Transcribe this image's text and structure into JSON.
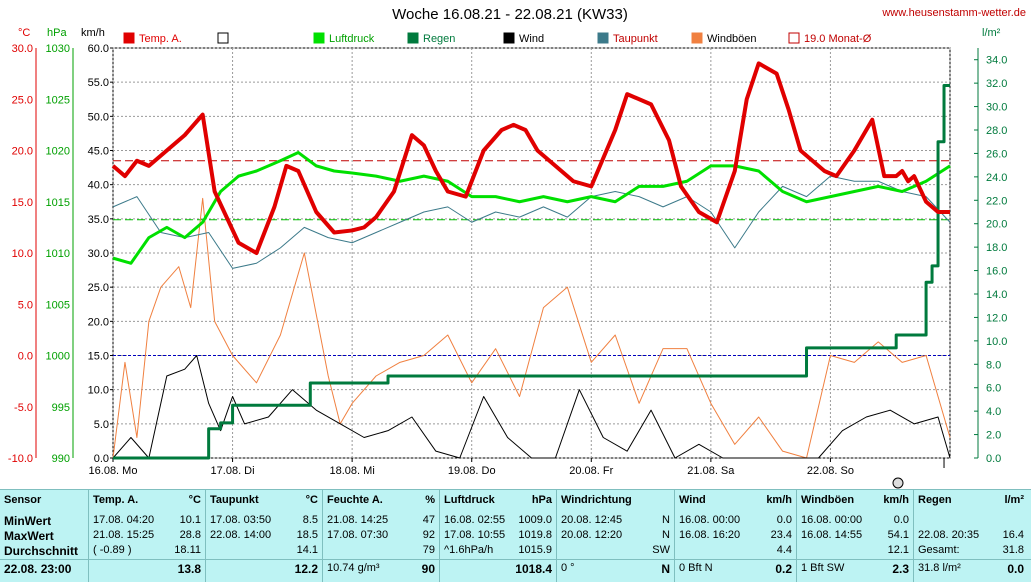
{
  "header": {
    "title": "Woche 16.08.21 - 22.08.21 (KW33)",
    "site": "www.heusenstamm-wetter.de"
  },
  "axes": {
    "temp_unit": "°C",
    "press_unit": "hPa",
    "wind_unit": "km/h",
    "rain_unit": "l/m²",
    "temp_ticks": [
      "30.0",
      "25.0",
      "20.0",
      "15.0",
      "10.0",
      "5.0",
      "0.0",
      "-5.0",
      "-10.0"
    ],
    "press_ticks": [
      "1030",
      "1025",
      "1020",
      "1015",
      "1010",
      "1005",
      "1000",
      "995",
      "990"
    ],
    "wind_ticks": [
      "60.0",
      "55.0",
      "50.0",
      "45.0",
      "40.0",
      "35.0",
      "30.0",
      "25.0",
      "20.0",
      "15.0",
      "10.0",
      "5.0",
      "0.0"
    ],
    "rain_ticks": [
      "34.0",
      "32.0",
      "30.0",
      "28.0",
      "26.0",
      "24.0",
      "22.0",
      "20.0",
      "18.0",
      "16.0",
      "14.0",
      "12.0",
      "10.0",
      "8.0",
      "6.0",
      "4.0",
      "2.0",
      "0.0"
    ],
    "day_labels": [
      "16.08. Mo",
      "17.08. Di",
      "18.08. Mi",
      "19.08. Do",
      "20.08. Fr",
      "21.08. Sa",
      "22.08. So"
    ]
  },
  "legend": {
    "temp": "Temp. A.",
    "press": "Luftdruck",
    "rain": "Regen",
    "wind": "Wind",
    "dew": "Taupunkt",
    "gust": "Windböen",
    "month": "19.0 Monat-Ø"
  },
  "colors": {
    "temp": "#e00000",
    "press": "#00e000",
    "rain": "#007a3d",
    "wind": "#000000",
    "dew": "#3c7a8a",
    "gust": "#f08040",
    "left_temp_axis": "#e00000",
    "left_press_axis": "#00a000",
    "right_rain_axis": "#007a3d"
  },
  "chart_data": {
    "type": "line",
    "title": "Woche 16.08.21 - 22.08.21 (KW33)",
    "xlabel": "",
    "ylabel": "°C / hPa / km/h / l/m²",
    "x_range_days": [
      0,
      7
    ],
    "temp_range": [
      -10,
      30
    ],
    "press_range": [
      990,
      1030
    ],
    "wind_range": [
      0,
      60
    ],
    "rain_range": [
      0,
      35
    ],
    "month_avg_temp": 19.0,
    "series": [
      {
        "name": "Temp. A.",
        "unit": "°C",
        "x": [
          0,
          0.1,
          0.2,
          0.3,
          0.45,
          0.6,
          0.75,
          0.85,
          0.95,
          1.05,
          1.2,
          1.35,
          1.45,
          1.55,
          1.7,
          1.85,
          2.0,
          2.1,
          2.2,
          2.35,
          2.5,
          2.6,
          2.7,
          2.8,
          2.95,
          3.1,
          3.25,
          3.35,
          3.45,
          3.55,
          3.7,
          3.85,
          4.0,
          4.2,
          4.3,
          4.5,
          4.65,
          4.75,
          4.9,
          5.05,
          5.2,
          5.3,
          5.4,
          5.55,
          5.65,
          5.75,
          5.85,
          5.95,
          6.05,
          6.2,
          6.35,
          6.45,
          6.55,
          6.6,
          6.65,
          6.7,
          6.8,
          6.9,
          7.0
        ],
        "values": [
          18.5,
          17.5,
          19.0,
          18.5,
          20.0,
          21.5,
          23.5,
          16.0,
          13.5,
          11.0,
          10.0,
          14.5,
          18.5,
          18.0,
          14.0,
          12.0,
          12.2,
          12.5,
          13.5,
          16.0,
          21.5,
          20.5,
          18.0,
          16.0,
          15.5,
          20.0,
          22.0,
          22.5,
          22.0,
          20.0,
          18.5,
          17.0,
          16.5,
          22.0,
          25.5,
          24.5,
          21.0,
          16.5,
          14.0,
          13.0,
          18.0,
          25.0,
          28.5,
          27.5,
          24.0,
          20.0,
          19.0,
          18.0,
          17.5,
          20.0,
          23.0,
          17.5,
          17.5,
          18.0,
          17.0,
          17.5,
          15.0,
          14.0,
          14.0
        ]
      },
      {
        "name": "Taupunkt",
        "unit": "°C",
        "x": [
          0,
          0.2,
          0.4,
          0.6,
          0.8,
          1.0,
          1.2,
          1.4,
          1.6,
          1.8,
          2.0,
          2.2,
          2.4,
          2.6,
          2.8,
          3.0,
          3.2,
          3.4,
          3.6,
          3.8,
          4.0,
          4.2,
          4.4,
          4.6,
          4.8,
          5.0,
          5.2,
          5.4,
          5.6,
          5.8,
          6.0,
          6.2,
          6.4,
          6.6,
          6.8,
          7.0
        ],
        "values": [
          14.5,
          15.5,
          12.0,
          11.5,
          12.0,
          8.5,
          9.0,
          10.5,
          12.5,
          11.5,
          11.0,
          12.0,
          13.0,
          14.0,
          14.5,
          13.0,
          14.0,
          13.5,
          14.5,
          13.5,
          15.5,
          16.0,
          15.5,
          14.5,
          15.5,
          14.0,
          10.5,
          14.0,
          16.5,
          15.5,
          17.5,
          17.0,
          17.0,
          16.0,
          15.5,
          13.0
        ]
      },
      {
        "name": "Luftdruck",
        "unit": "hPa",
        "x": [
          0,
          0.15,
          0.3,
          0.45,
          0.6,
          0.75,
          0.9,
          1.05,
          1.2,
          1.4,
          1.55,
          1.7,
          1.85,
          2.0,
          2.2,
          2.4,
          2.6,
          2.8,
          3.0,
          3.2,
          3.4,
          3.6,
          3.8,
          4.0,
          4.2,
          4.4,
          4.6,
          4.8,
          5.0,
          5.2,
          5.4,
          5.6,
          5.8,
          6.0,
          6.2,
          6.4,
          6.6,
          6.8,
          7.0
        ],
        "values": [
          1009.5,
          1009.0,
          1011.5,
          1012.5,
          1011.5,
          1013.0,
          1016.0,
          1017.5,
          1018.0,
          1019.0,
          1019.8,
          1018.5,
          1018.0,
          1017.8,
          1017.5,
          1017.0,
          1017.5,
          1017.0,
          1015.5,
          1015.5,
          1015.0,
          1015.5,
          1015.0,
          1015.5,
          1015.0,
          1016.5,
          1016.5,
          1017.0,
          1018.5,
          1018.5,
          1018.0,
          1016.0,
          1015.0,
          1015.5,
          1016.0,
          1016.5,
          1016.0,
          1017.0,
          1018.5
        ]
      },
      {
        "name": "Wind",
        "unit": "km/h",
        "x": [
          0,
          0.15,
          0.3,
          0.45,
          0.6,
          0.7,
          0.8,
          0.9,
          1.0,
          1.1,
          1.3,
          1.5,
          1.7,
          1.9,
          2.1,
          2.3,
          2.5,
          2.7,
          2.9,
          3.1,
          3.3,
          3.5,
          3.7,
          3.9,
          4.1,
          4.3,
          4.5,
          4.7,
          4.9,
          5.1,
          5.3,
          5.5,
          5.7,
          5.9,
          6.1,
          6.3,
          6.5,
          6.7,
          6.9,
          7.0
        ],
        "values": [
          0,
          3,
          0,
          12,
          13,
          15,
          8,
          4,
          9,
          5,
          6,
          10,
          7,
          5,
          3,
          4,
          6,
          1,
          0,
          9,
          3,
          0,
          0,
          10,
          3,
          1,
          7,
          0,
          2,
          0,
          0,
          0,
          0,
          0,
          4,
          6,
          7,
          5,
          6,
          0
        ]
      },
      {
        "name": "Windböen",
        "unit": "km/h",
        "x": [
          0,
          0.1,
          0.2,
          0.3,
          0.4,
          0.55,
          0.65,
          0.75,
          0.85,
          1.0,
          1.2,
          1.4,
          1.6,
          1.8,
          1.9,
          2.0,
          2.2,
          2.4,
          2.6,
          2.8,
          3.0,
          3.2,
          3.4,
          3.6,
          3.8,
          4.0,
          4.2,
          4.4,
          4.6,
          4.8,
          5.0,
          5.2,
          5.4,
          5.6,
          5.8,
          6.0,
          6.2,
          6.4,
          6.6,
          6.8,
          7.0
        ],
        "values": [
          0,
          14,
          3,
          20,
          25,
          28,
          22,
          38,
          20,
          15,
          11,
          18,
          30,
          12,
          5,
          8,
          12,
          14,
          15,
          18,
          11,
          16,
          9,
          22,
          25,
          14,
          18,
          8,
          16,
          16,
          8,
          2,
          6,
          1,
          0,
          15,
          14,
          17,
          14,
          15,
          3
        ]
      },
      {
        "name": "Regen",
        "unit": "l/m²",
        "x": [
          0,
          0.6,
          0.7,
          0.8,
          0.9,
          1.0,
          1.5,
          1.6,
          1.65,
          2.0,
          2.25,
          2.3,
          3.0,
          4.0,
          5.0,
          5.75,
          5.8,
          6.0,
          6.5,
          6.55,
          6.8,
          6.85,
          6.9,
          6.95,
          7.0
        ],
        "values": [
          0,
          0,
          0,
          2.5,
          3.0,
          4.5,
          4.5,
          4.5,
          6.4,
          6.4,
          6.4,
          7.0,
          7.0,
          7.0,
          7.0,
          7.0,
          9.4,
          9.4,
          9.4,
          10.5,
          15.0,
          16.4,
          27.0,
          31.8,
          31.8
        ]
      }
    ]
  },
  "summary": {
    "sensor": {
      "hdr": "Sensor",
      "r1": "MinWert",
      "r2": "MaxWert",
      "r3": "Durchschnitt",
      "foot": "22.08. 23:00"
    },
    "temp": {
      "hdr": "Temp. A.",
      "unit": "°C",
      "r1a": "17.08.  04:20",
      "r1b": "10.1",
      "r2a": "21.08.  15:25",
      "r2b": "28.8",
      "r3a": "( -0.89 )",
      "r3b": "18.11",
      "foot": "13.8"
    },
    "dew": {
      "hdr": "Taupunkt",
      "unit": "°C",
      "r1a": "17.08.  03:50",
      "r1b": "8.5",
      "r2a": "22.08.  14:00",
      "r2b": "18.5",
      "r3a": "",
      "r3b": "14.1",
      "foot": "12.2"
    },
    "hum": {
      "hdr": "Feuchte A.",
      "unit": "%",
      "r1a": "21.08.  14:25",
      "r1b": "47",
      "r2a": "17.08.  07:30",
      "r2b": "92",
      "r3a": "",
      "r3b": "79",
      "foota": "10.74 g/m³",
      "foot": "90"
    },
    "press": {
      "hdr": "Luftdruck",
      "unit": "hPa",
      "r1a": "16.08.  02:55",
      "r1b": "1009.0",
      "r2a": "17.08.  10:55",
      "r2b": "1019.8",
      "r3a": "^1.6hPa/h",
      "r3b": "1015.9",
      "foot": "1018.4"
    },
    "dir": {
      "hdr": "Windrichtung",
      "r1a": "20.08.  12:45",
      "r1b": "N",
      "r2a": "20.08.  12:20",
      "r2b": "N",
      "r3b": "SW",
      "foota": "0 °",
      "foot": "N"
    },
    "wind": {
      "hdr": "Wind",
      "unit": "km/h",
      "r1a": "16.08.  00:00",
      "r1b": "0.0",
      "r2a": "16.08.  16:20",
      "r2b": "23.4",
      "r3b": "4.4",
      "foota": "0 Bft N",
      "foot": "0.2"
    },
    "gust": {
      "hdr": "Windböen",
      "unit": "km/h",
      "r1a": "16.08.  00:00",
      "r1b": "0.0",
      "r2a": "16.08.  14:55",
      "r2b": "54.1",
      "r3b": "12.1",
      "foota": "1 Bft SW",
      "foot": "2.3"
    },
    "rain": {
      "hdr": "Regen",
      "unit": "l/m²",
      "r2a": "22.08.  20:35",
      "r2b": "16.4",
      "r3a": "Gesamt:",
      "r3b": "31.8",
      "foota": "31.8 l/m²",
      "foot": "0.0"
    }
  }
}
